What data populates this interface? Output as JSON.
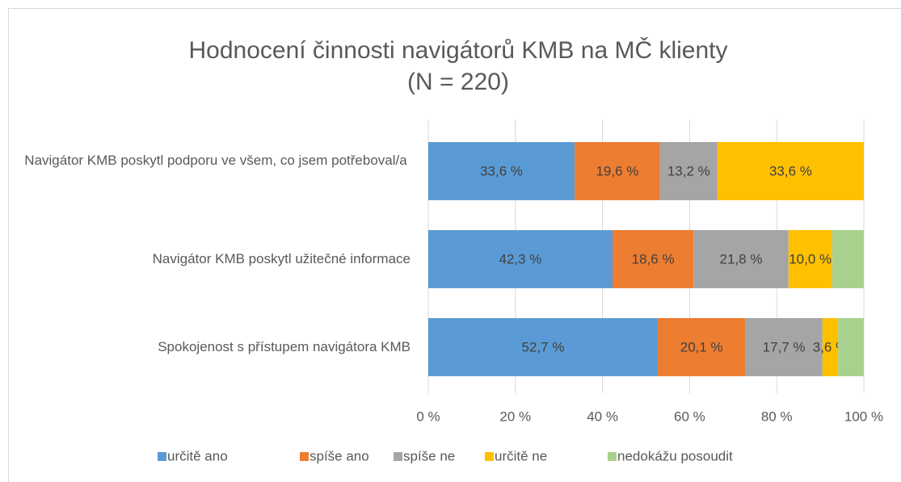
{
  "chart_data": {
    "type": "stacked_bar_horizontal",
    "title": "Hodnocení činnosti navigátorů KMB na MČ klienty",
    "subtitle": "(N = 220)",
    "categories": [
      "Navigátor KMB poskytl podporu ve všem, co jsem potřeboval/a",
      "Navigátor KMB poskytl užitečné informace",
      "Spokojenost s přístupem navigátora KMB"
    ],
    "series": [
      {
        "name": "určitě ano",
        "color": "#5b9bd5",
        "values": [
          33.6,
          42.3,
          52.7
        ],
        "value_labels": [
          "33,6 %",
          "42,3 %",
          "52,7 %"
        ]
      },
      {
        "name": "spíše ano",
        "color": "#ed7d31",
        "values": [
          19.6,
          18.6,
          20.1
        ],
        "value_labels": [
          "19,6 %",
          "18,6 %",
          "20,1 %"
        ]
      },
      {
        "name": "spíše ne",
        "color": "#a5a5a5",
        "values": [
          13.2,
          21.8,
          17.7
        ],
        "value_labels": [
          "13,2 %",
          "21,8 %",
          "17,7 %"
        ]
      },
      {
        "name": "určitě ne",
        "color": "#ffc000",
        "values": [
          33.6,
          10.0,
          3.6
        ],
        "value_labels": [
          "33,6 %",
          "10,0 %",
          "3,6 %"
        ]
      },
      {
        "name": "nedokážu posoudit",
        "color": "#a9d18e",
        "values": [
          0,
          7.3,
          5.9
        ]
      }
    ],
    "xlim": [
      0,
      100
    ],
    "xticks": [
      {
        "value": 0,
        "label": "0 %"
      },
      {
        "value": 20,
        "label": "20 %"
      },
      {
        "value": 40,
        "label": "40 %"
      },
      {
        "value": 60,
        "label": "60 %"
      },
      {
        "value": 80,
        "label": "80 %"
      },
      {
        "value": 100,
        "label": "100 %"
      }
    ],
    "grid": true,
    "legend": "bottom"
  }
}
